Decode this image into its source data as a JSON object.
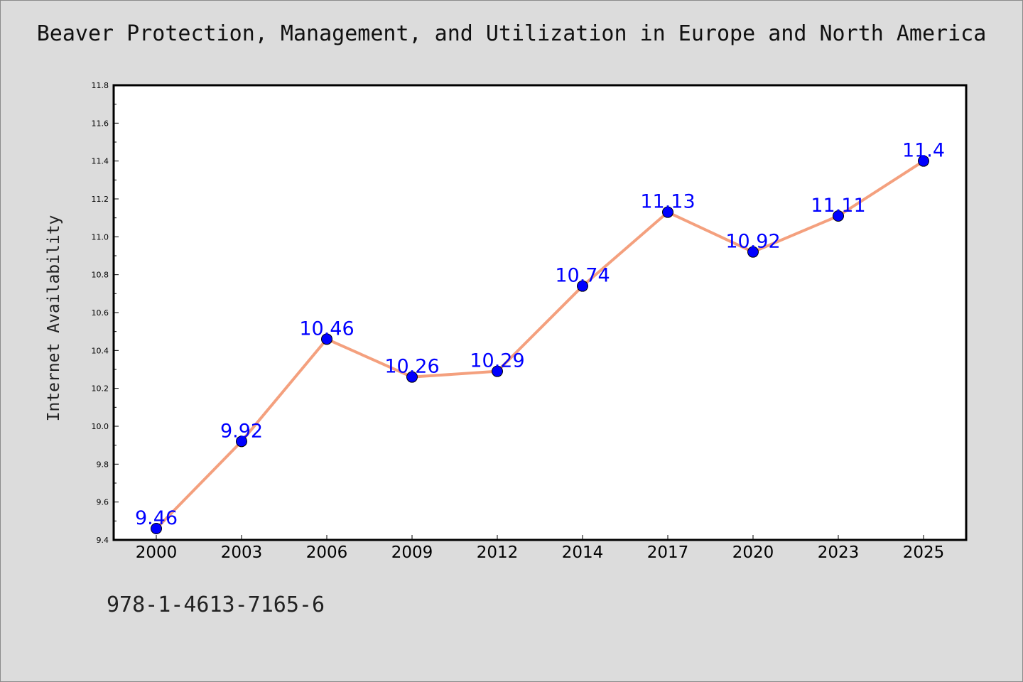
{
  "title": "Beaver Protection, Management, and Utilization in Europe and North America",
  "footer_text": "978-1-4613-7165-6",
  "colors": {
    "background": "#dcdcdc",
    "plot_background": "#ffffff",
    "line": "#f4a07e",
    "marker": "#0000ff",
    "data_label": "#0000ff"
  },
  "chart_data": {
    "type": "line",
    "title": "Beaver Protection, Management, and Utilization in Europe and North America",
    "xlabel": "",
    "ylabel": "Internet Availability",
    "categories": [
      "2000",
      "2003",
      "2006",
      "2009",
      "2012",
      "2014",
      "2017",
      "2020",
      "2023",
      "2025"
    ],
    "series": [
      {
        "values": [
          9.46,
          9.92,
          10.46,
          10.26,
          10.29,
          10.74,
          11.13,
          10.92,
          11.11,
          11.4
        ],
        "labels": [
          "9.46",
          "9.92",
          "10.46",
          "10.26",
          "10.29",
          "10.74",
          "11.13",
          "10.92",
          "11.11",
          "11.4"
        ]
      }
    ],
    "ylim": [
      9.4,
      11.8
    ],
    "yticks": [
      "9.4",
      "9.6",
      "9.8",
      "10.0",
      "10.2",
      "10.4",
      "10.6",
      "10.8",
      "11.0",
      "11.2",
      "11.4",
      "11.6",
      "11.8"
    ],
    "grid": false,
    "legend": "none"
  }
}
